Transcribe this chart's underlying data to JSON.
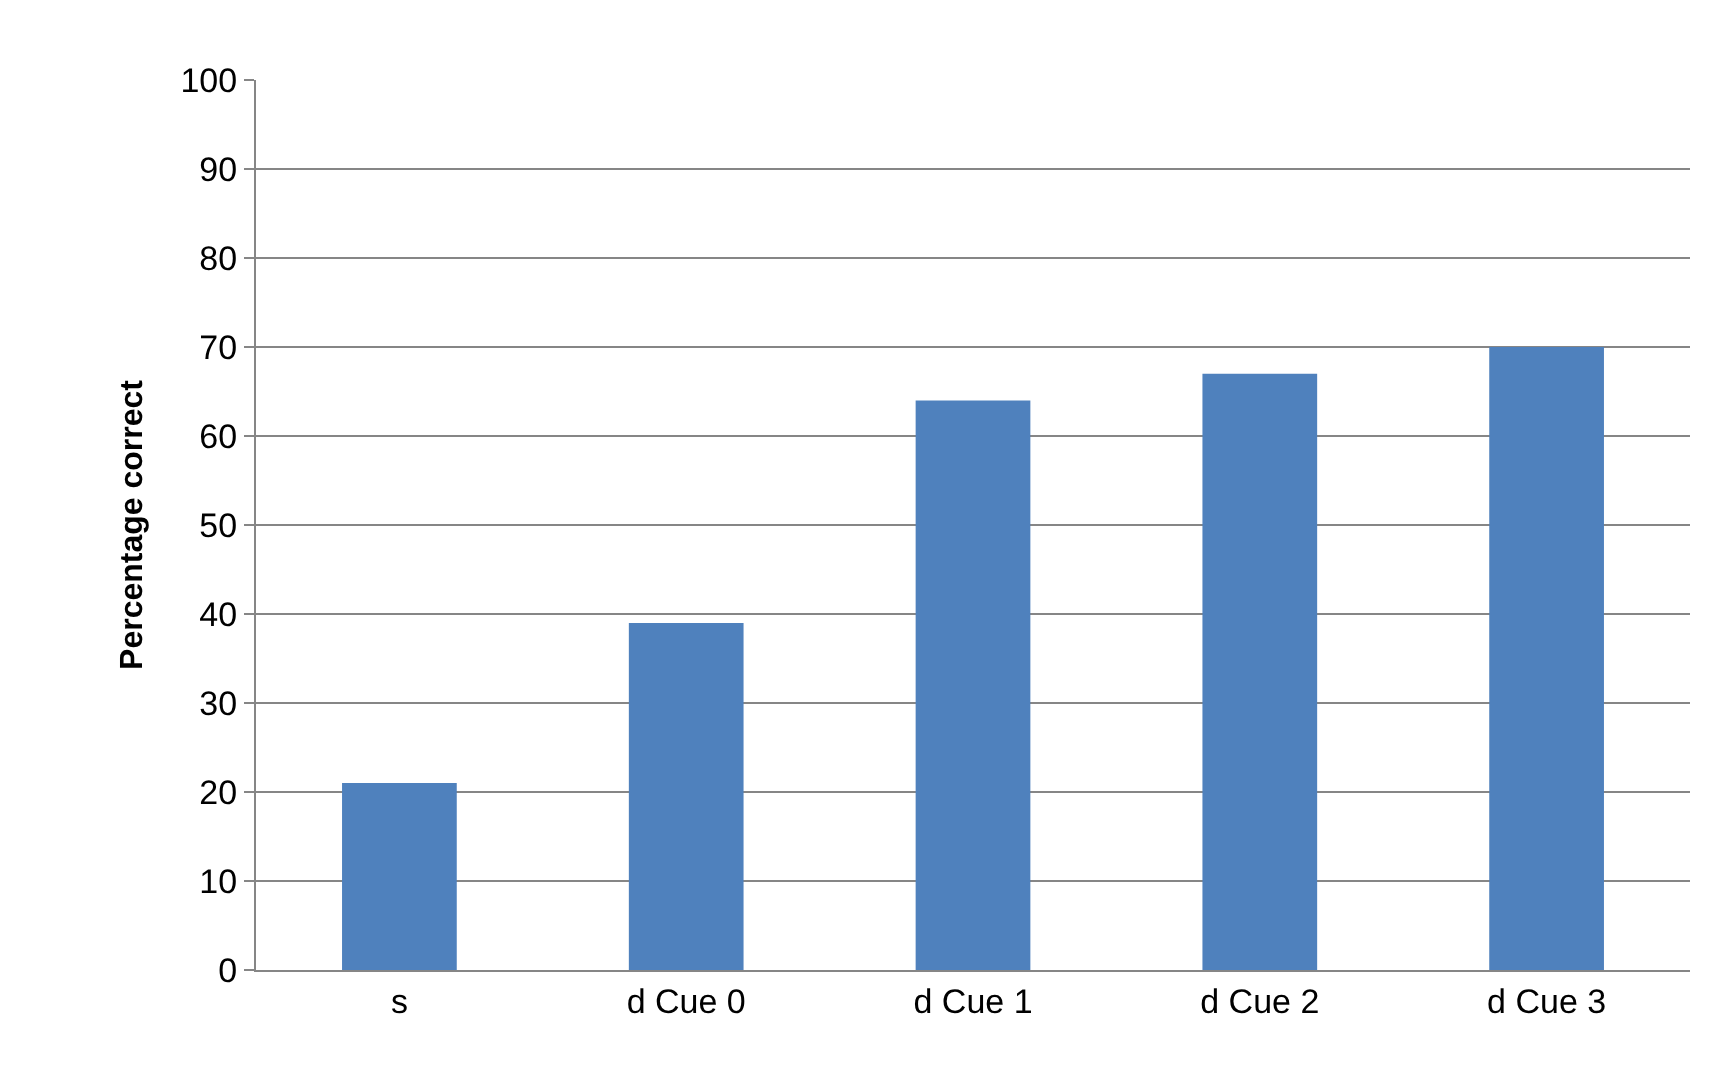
{
  "chart_data": {
    "type": "bar",
    "ylabel": "Percentage correct",
    "categories": [
      "s",
      "d Cue 0",
      "d Cue 1",
      "d Cue 2",
      "d Cue 3"
    ],
    "values": [
      21,
      39,
      64,
      67,
      70
    ],
    "color": "#4f81bd",
    "ylim": [
      0,
      100
    ],
    "yticks": [
      0,
      10,
      20,
      30,
      40,
      50,
      60,
      70,
      80,
      90,
      100
    ],
    "grid": "y"
  }
}
